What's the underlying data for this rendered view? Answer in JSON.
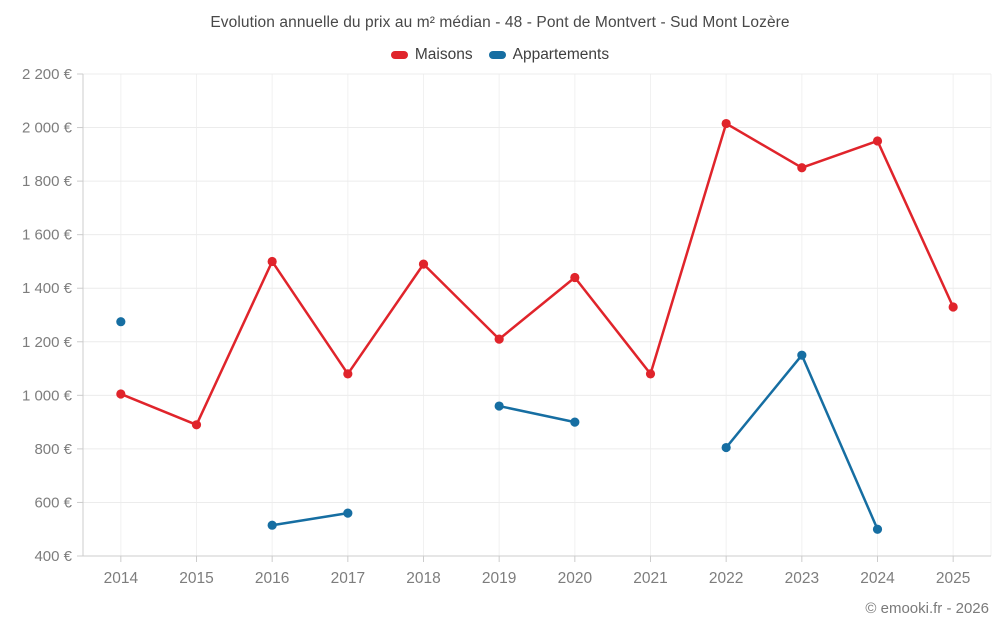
{
  "footer": {
    "credit": "© emooki.fr - 2026"
  },
  "colors": {
    "background": "#ffffff",
    "grid_horizontal": "#ececec",
    "grid_vertical": "#f1f1f1",
    "axis": "#cccccc",
    "axis_label": "#7d7d7d",
    "title_text": "#484848",
    "maisons_red": "#e0242b",
    "appartements_blue": "#166ea2"
  },
  "chart_data": {
    "type": "line",
    "title": "Evolution annuelle du prix au m² médian - 48 - Pont de Montvert - Sud Mont Lozère",
    "xlabel": "",
    "ylabel": "",
    "categories": [
      "2014",
      "2015",
      "2016",
      "2017",
      "2018",
      "2019",
      "2020",
      "2021",
      "2022",
      "2023",
      "2024",
      "2025"
    ],
    "series": [
      {
        "name": "Maisons",
        "color": "#e0242b",
        "values": [
          1005,
          890,
          1500,
          1080,
          1490,
          1210,
          1440,
          1080,
          2015,
          1850,
          1950,
          1330
        ]
      },
      {
        "name": "Appartements",
        "color": "#166ea2",
        "values": [
          1275,
          null,
          515,
          560,
          null,
          960,
          900,
          null,
          805,
          1150,
          500,
          null
        ]
      }
    ],
    "ylim": [
      400,
      2200
    ],
    "ytick_step": 200,
    "y_tick_labels": [
      "400 €",
      "600 €",
      "800 €",
      "1 000 €",
      "1 200 €",
      "1 400 €",
      "1 600 €",
      "1 800 €",
      "2 000 €",
      "2 200 €"
    ],
    "grid": true,
    "legend_position": "top",
    "currency": "€"
  }
}
